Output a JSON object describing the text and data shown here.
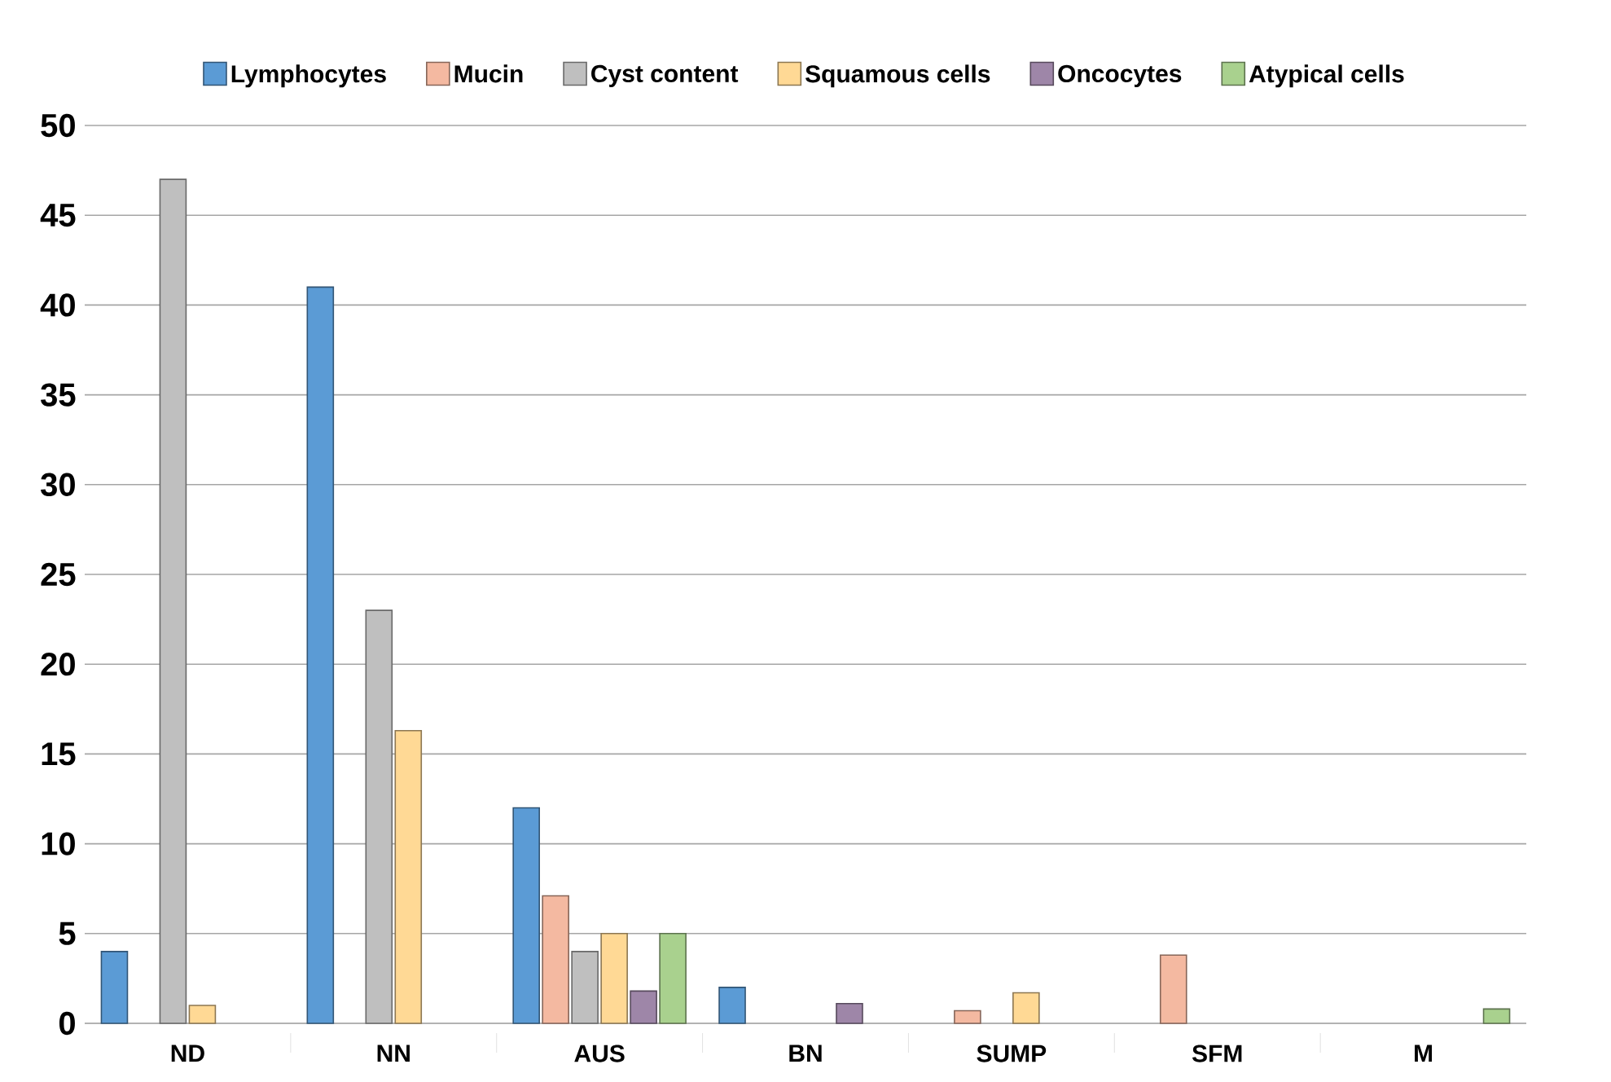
{
  "chart_data": {
    "type": "bar",
    "categories": [
      "ND",
      "NN",
      "AUS",
      "BN",
      "SUMP",
      "SFM",
      "M"
    ],
    "series": [
      {
        "name": "Lymphocytes",
        "color": "#5b9bd5",
        "values": [
          4,
          41,
          12,
          2,
          null,
          null,
          null
        ]
      },
      {
        "name": "Mucin",
        "color": "#f4b9a1",
        "values": [
          null,
          null,
          7.1,
          null,
          0.7,
          3.8,
          null
        ]
      },
      {
        "name": "Cyst content",
        "color": "#bfbfbf",
        "values": [
          47,
          23,
          4,
          null,
          null,
          null,
          null
        ]
      },
      {
        "name": "Squamous cells",
        "color": "#ffd995",
        "values": [
          1,
          16.3,
          5,
          null,
          1.7,
          null,
          null
        ]
      },
      {
        "name": "Oncocytes",
        "color": "#9e86a8",
        "values": [
          null,
          null,
          1.8,
          1.1,
          null,
          null,
          null
        ]
      },
      {
        "name": "Atypical cells",
        "color": "#a9d18e",
        "values": [
          null,
          null,
          5,
          null,
          null,
          null,
          0.8
        ]
      }
    ],
    "ylim": [
      0,
      50
    ],
    "yticks": [
      0,
      5,
      10,
      15,
      20,
      25,
      30,
      35,
      40,
      45,
      50
    ],
    "grid": "y",
    "legend": "top"
  }
}
